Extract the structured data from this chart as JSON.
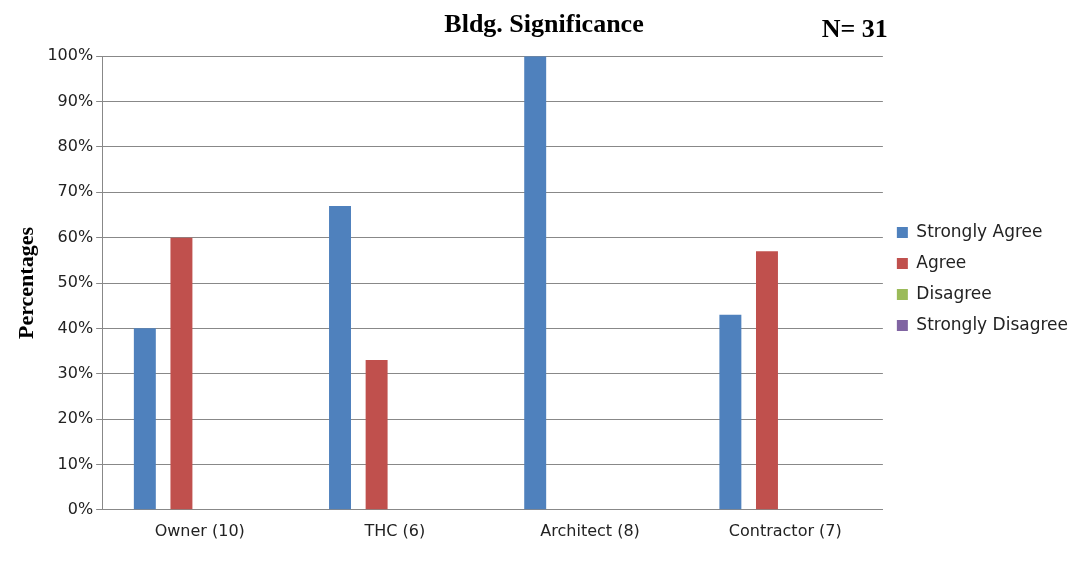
{
  "chart_data": {
    "type": "bar",
    "title": "Bldg. Significance",
    "annotations": [
      "N= 31"
    ],
    "ylabel": "Percentages",
    "categories": [
      "Owner (10)",
      "THC (6)",
      "Architect (8)",
      "Contractor (7)"
    ],
    "series": [
      {
        "name": "Strongly Agree",
        "color": "#4f81bd",
        "values": [
          40,
          67,
          100,
          43
        ]
      },
      {
        "name": "Agree",
        "color": "#c0504d",
        "values": [
          60,
          33,
          0,
          57
        ]
      },
      {
        "name": "Disagree",
        "color": "#9bbb59",
        "values": [
          0,
          0,
          0,
          0
        ]
      },
      {
        "name": "Strongly Disagree",
        "color": "#8064a2",
        "values": [
          0,
          0,
          0,
          0
        ]
      }
    ],
    "ylim": [
      0,
      100
    ],
    "yticks": [
      {
        "value": 0,
        "label": "0%"
      },
      {
        "value": 10,
        "label": "10%"
      },
      {
        "value": 20,
        "label": "20%"
      },
      {
        "value": 30,
        "label": "30%"
      },
      {
        "value": 40,
        "label": "40%"
      },
      {
        "value": 50,
        "label": "50%"
      },
      {
        "value": 60,
        "label": "60%"
      },
      {
        "value": 70,
        "label": "70%"
      },
      {
        "value": 80,
        "label": "80%"
      },
      {
        "value": 90,
        "label": "90%"
      },
      {
        "value": 100,
        "label": "100%"
      }
    ],
    "grid": "y",
    "legend": "right"
  }
}
